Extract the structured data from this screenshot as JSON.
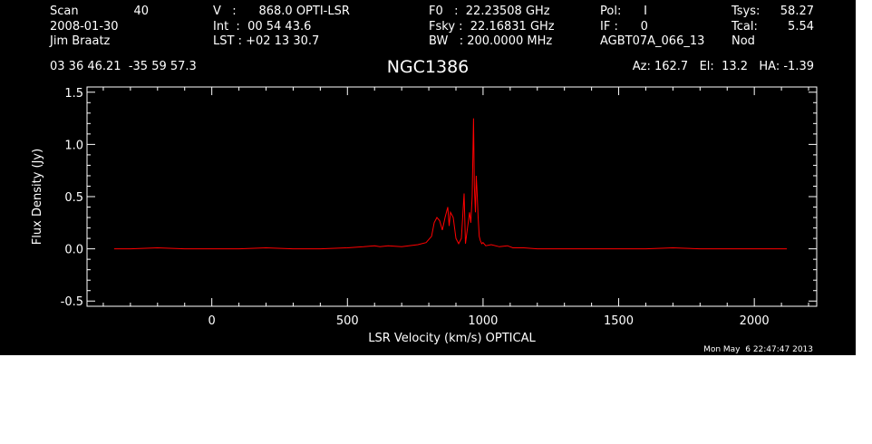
{
  "header": {
    "col1": {
      "line1_label": "Scan",
      "line1_value": "40",
      "line2": "2008-01-30",
      "line3": "Jim Braatz",
      "coords": "03 36 46.21  -35 59 57.3"
    },
    "col2": {
      "line1": "V   :      868.0 OPTI-LSR",
      "line2": "Int  :  00 54 43.6",
      "line3": "LST : +02 13 30.7"
    },
    "col3": {
      "line1": "F0   :  22.23508 GHz",
      "line2": "Fsky :  22.16831 GHz",
      "line3": "BW   : 200.0000 MHz"
    },
    "col4": {
      "line1": "Pol:      I",
      "line2": "IF :      0",
      "line3": "AGBT07A_066_13"
    },
    "col5": {
      "line1_label": "Tsys:",
      "line1_value": "58.27",
      "line2_label": "Tcal:",
      "line2_value": "5.54",
      "line3": "Nod"
    },
    "pointing": "Az: 162.7   El:  13.2   HA: -1.39",
    "object": "NGC1386"
  },
  "timestamp": "Mon May  6 22:47:47 2013",
  "colors": {
    "background": "#000000",
    "axes": "#ffffff",
    "trace": "#ff0000"
  },
  "chart_data": {
    "type": "line",
    "xlabel": "LSR Velocity (km/s) OPTICAL",
    "ylabel": "Flux Density (Jy)",
    "xlim": [
      -460,
      2230
    ],
    "ylim": [
      -0.55,
      1.55
    ],
    "xticks": [
      0,
      500,
      1000,
      1500,
      2000
    ],
    "xtick_labels": [
      "0",
      "500",
      "1000",
      "1500",
      "2000"
    ],
    "yticks": [
      -0.5,
      0.0,
      0.5,
      1.0,
      1.5
    ],
    "ytick_labels": [
      "-0.5",
      "0.0",
      "0.5",
      "1.0",
      "1.5"
    ],
    "grid": false,
    "series": [
      {
        "color": "#ff0000",
        "x": [
          -360,
          -300,
          -200,
          -100,
          0,
          100,
          200,
          300,
          400,
          500,
          560,
          600,
          620,
          650,
          700,
          760,
          790,
          810,
          820,
          830,
          840,
          850,
          860,
          870,
          875,
          880,
          890,
          900,
          910,
          920,
          930,
          935,
          940,
          950,
          955,
          960,
          965,
          968,
          972,
          975,
          978,
          982,
          986,
          990,
          995,
          1000,
          1010,
          1030,
          1060,
          1090,
          1110,
          1150,
          1200,
          1300,
          1400,
          1500,
          1600,
          1700,
          1800,
          1900,
          2000,
          2100,
          2120
        ],
        "values": [
          0.0,
          0.0,
          0.01,
          0.0,
          0.0,
          0.0,
          0.01,
          0.0,
          0.0,
          0.01,
          0.02,
          0.03,
          0.02,
          0.03,
          0.02,
          0.04,
          0.06,
          0.12,
          0.25,
          0.3,
          0.27,
          0.18,
          0.3,
          0.4,
          0.22,
          0.35,
          0.3,
          0.1,
          0.05,
          0.1,
          0.53,
          0.05,
          0.15,
          0.35,
          0.25,
          0.5,
          1.25,
          0.6,
          0.35,
          0.7,
          0.55,
          0.3,
          0.12,
          0.08,
          0.05,
          0.06,
          0.03,
          0.04,
          0.02,
          0.03,
          0.01,
          0.01,
          0.0,
          0.0,
          0.0,
          0.0,
          0.0,
          0.01,
          0.0,
          0.0,
          0.0,
          0.0,
          0.0
        ]
      }
    ]
  }
}
